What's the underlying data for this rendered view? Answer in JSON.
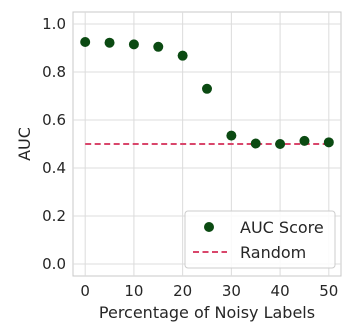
{
  "chart_data": {
    "type": "scatter",
    "xlabel": "Percentage of Noisy Labels",
    "ylabel": "AUC",
    "xlim": [
      -2.5,
      52.5
    ],
    "ylim": [
      -0.05,
      1.05
    ],
    "x_ticks": [
      0,
      10,
      20,
      30,
      40,
      50
    ],
    "x_tick_labels": [
      "0",
      "10",
      "20",
      "30",
      "40",
      "50"
    ],
    "y_ticks": [
      0.0,
      0.2,
      0.4,
      0.6,
      0.8,
      1.0
    ],
    "y_tick_labels": [
      "0.0",
      "0.2",
      "0.4",
      "0.6",
      "0.8",
      "1.0"
    ],
    "grid": true,
    "legend_position": "lower-right",
    "series": [
      {
        "name": "AUC Score",
        "kind": "scatter",
        "color": "#0b4a12",
        "x": [
          0,
          5,
          10,
          15,
          20,
          25,
          30,
          35,
          40,
          45,
          50
        ],
        "y": [
          0.925,
          0.922,
          0.915,
          0.905,
          0.868,
          0.73,
          0.535,
          0.502,
          0.5,
          0.513,
          0.507
        ]
      },
      {
        "name": "Random",
        "kind": "dashed-line",
        "color": "#d9466b",
        "x": [
          0,
          50
        ],
        "y": [
          0.5,
          0.5
        ]
      }
    ]
  }
}
